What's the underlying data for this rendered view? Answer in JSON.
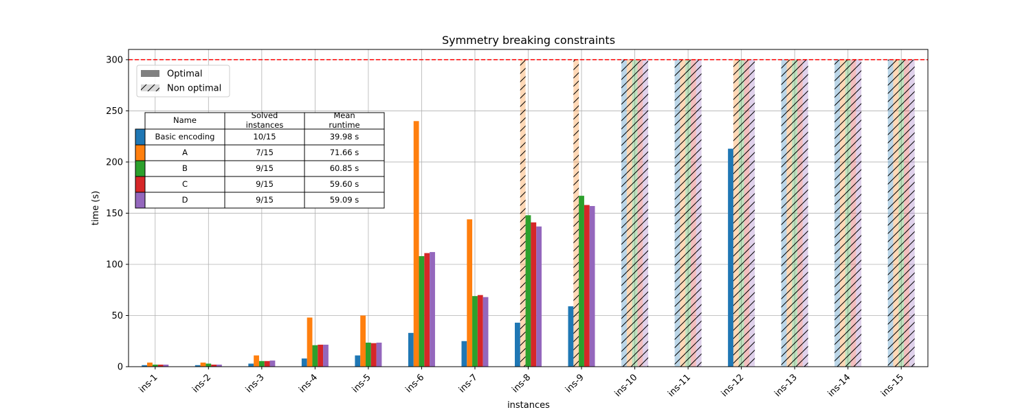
{
  "chart_data": {
    "type": "bar",
    "title": "Symmetry breaking constraints",
    "xlabel": "instances",
    "ylabel": "time (s)",
    "ylim": [
      0,
      310
    ],
    "yticks": [
      0,
      50,
      100,
      150,
      200,
      250,
      300
    ],
    "grid": true,
    "timeout": 300,
    "categories": [
      "ins-1",
      "ins-2",
      "ins-3",
      "ins-4",
      "ins-5",
      "ins-6",
      "ins-7",
      "ins-8",
      "ins-9",
      "ins-10",
      "ins-11",
      "ins-12",
      "ins-13",
      "ins-14",
      "ins-15"
    ],
    "series": [
      {
        "name": "Basic encoding",
        "color": "#1f77b4",
        "values": [
          1.5,
          1.5,
          3,
          8,
          11,
          33,
          25,
          43,
          59,
          300,
          300,
          213,
          300,
          300,
          300
        ],
        "optimal": [
          true,
          true,
          true,
          true,
          true,
          true,
          true,
          true,
          true,
          false,
          false,
          true,
          false,
          false,
          false
        ]
      },
      {
        "name": "A",
        "color": "#ff7f0e",
        "values": [
          4,
          4,
          11,
          48,
          50,
          240,
          144,
          300,
          300,
          300,
          300,
          300,
          300,
          300,
          300
        ],
        "optimal": [
          true,
          true,
          true,
          true,
          true,
          true,
          true,
          false,
          false,
          false,
          false,
          false,
          false,
          false,
          false
        ]
      },
      {
        "name": "B",
        "color": "#2ca02c",
        "values": [
          2,
          3,
          5.5,
          21,
          23.5,
          108,
          69,
          148,
          167,
          300,
          300,
          300,
          300,
          300,
          300
        ],
        "optimal": [
          true,
          true,
          true,
          true,
          true,
          true,
          true,
          true,
          true,
          false,
          false,
          false,
          false,
          false,
          false
        ]
      },
      {
        "name": "C",
        "color": "#d62728",
        "values": [
          2,
          2,
          5.5,
          21.5,
          23,
          111,
          70,
          141,
          158,
          300,
          300,
          300,
          300,
          300,
          300
        ],
        "optimal": [
          true,
          true,
          true,
          true,
          true,
          true,
          true,
          true,
          true,
          false,
          false,
          false,
          false,
          false,
          false
        ]
      },
      {
        "name": "D",
        "color": "#9467bd",
        "values": [
          2,
          2,
          6,
          21.5,
          23.5,
          112,
          68,
          137,
          157,
          300,
          300,
          300,
          300,
          300,
          300
        ],
        "optimal": [
          true,
          true,
          true,
          true,
          true,
          true,
          true,
          true,
          true,
          false,
          false,
          false,
          false,
          false,
          false
        ]
      }
    ],
    "legend": {
      "placement": "upper-left",
      "entries": [
        "Optimal",
        "Non optimal"
      ]
    },
    "table": {
      "headers": [
        "Name",
        "Solved\ninstances",
        "Mean\nruntime"
      ],
      "rows": [
        [
          "Basic encoding",
          "10/15",
          "39.98 s"
        ],
        [
          "A",
          "7/15",
          "71.66 s"
        ],
        [
          "B",
          "9/15",
          "60.85 s"
        ],
        [
          "C",
          "9/15",
          "59.60 s"
        ],
        [
          "D",
          "9/15",
          "59.09 s"
        ]
      ]
    }
  }
}
